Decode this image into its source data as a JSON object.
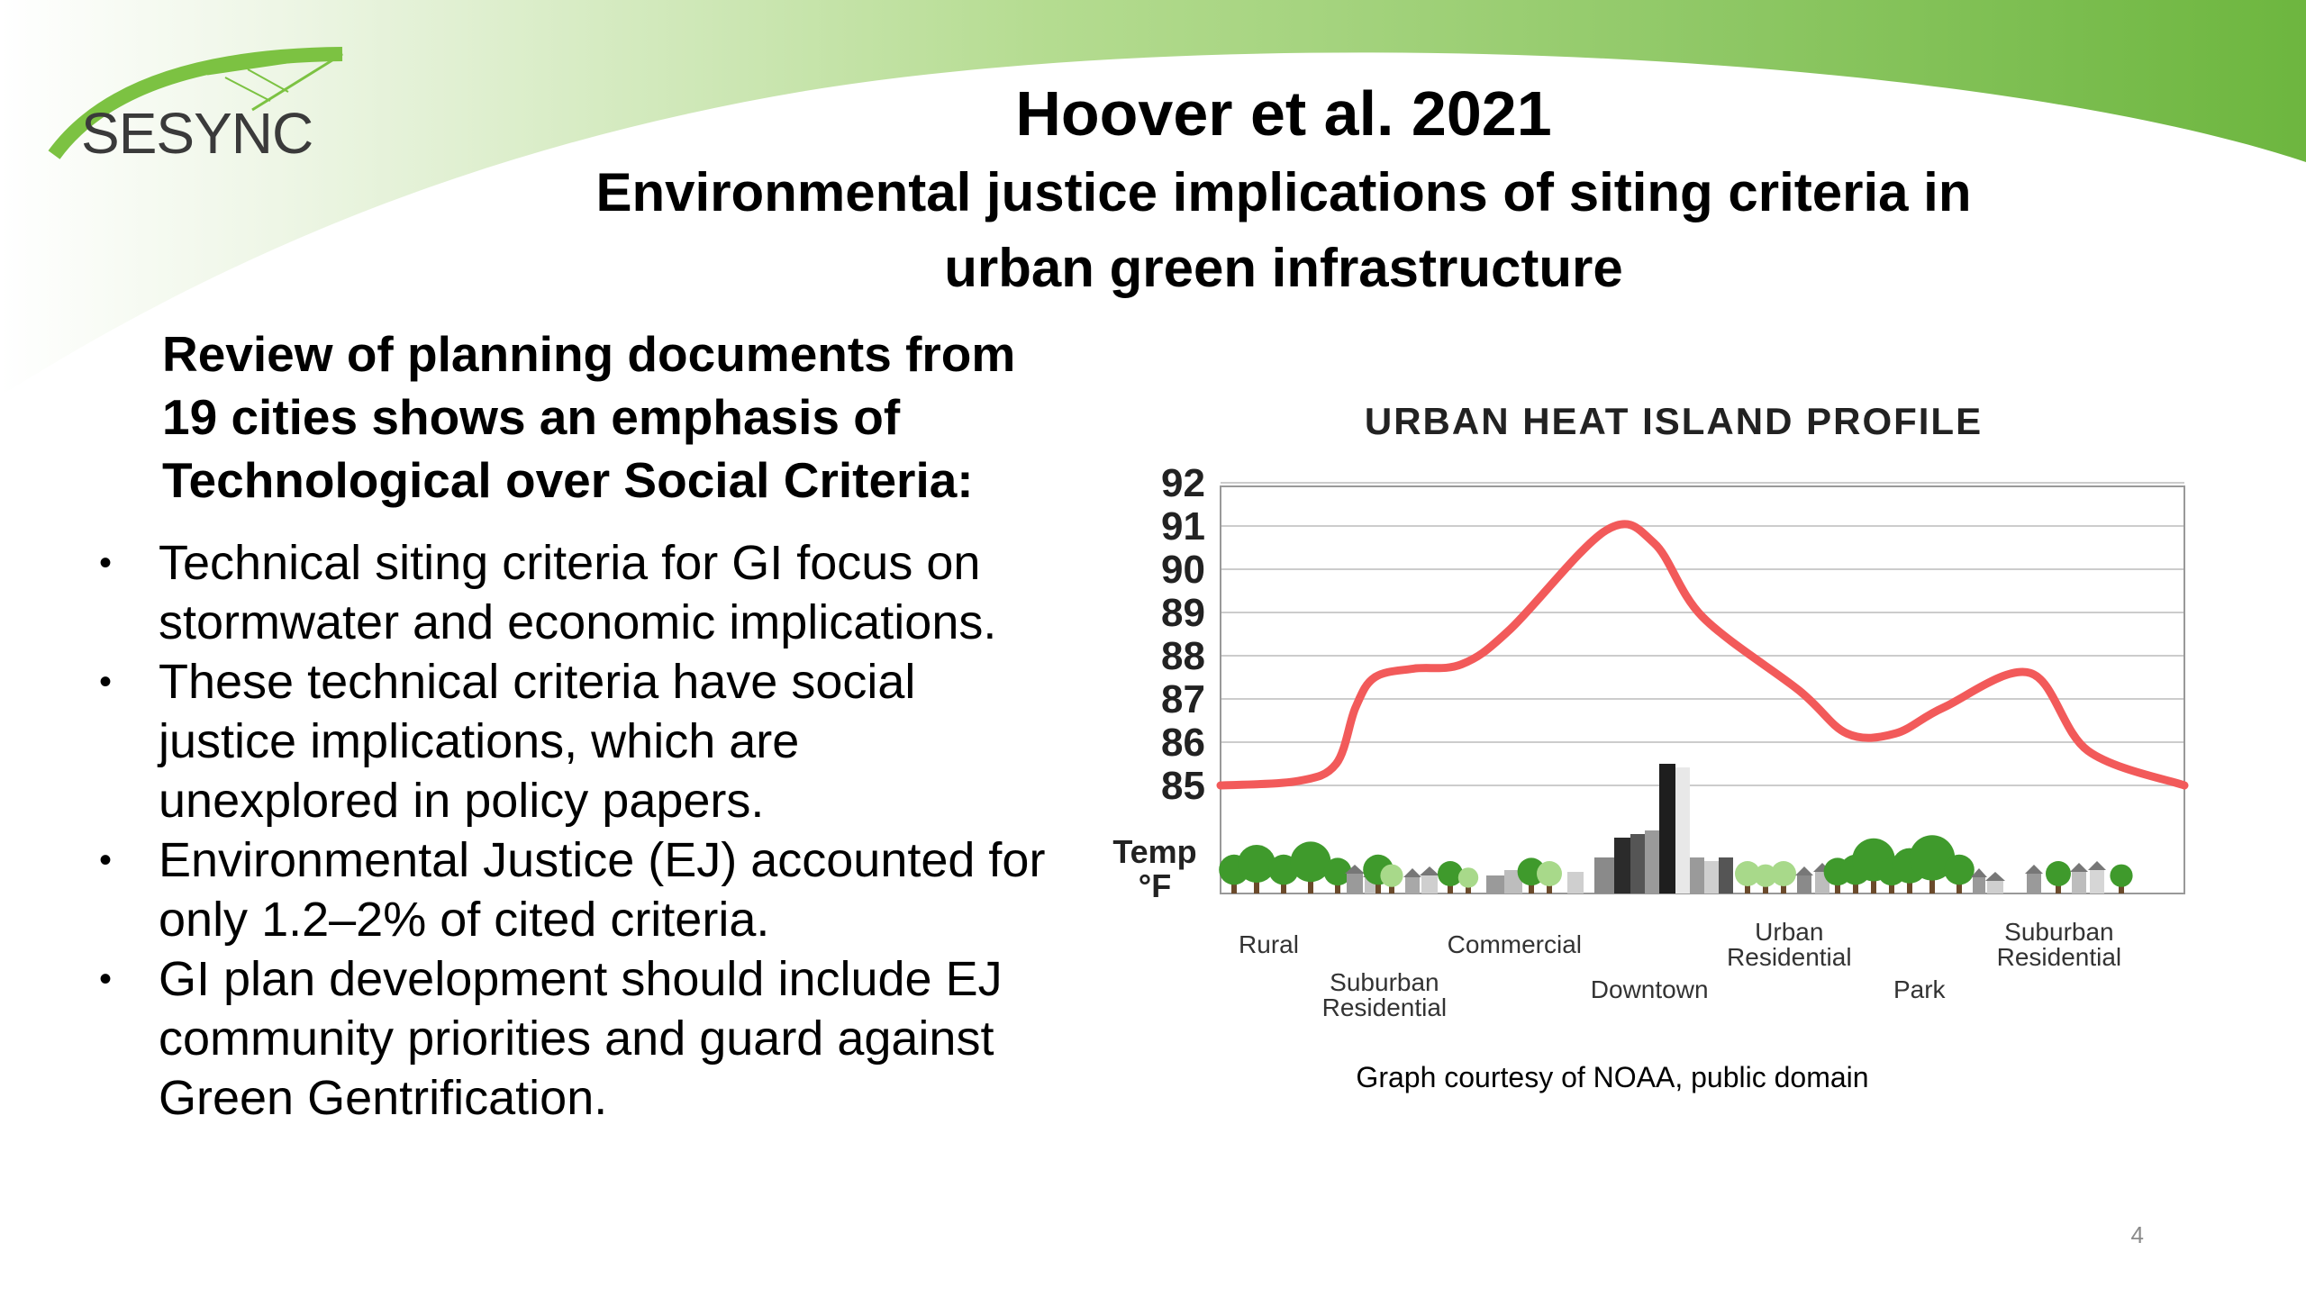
{
  "logo": {
    "text": "SESYNC"
  },
  "title": {
    "main": "Hoover et al. 2021",
    "sub_line1": "Environmental justice implications of siting criteria in",
    "sub_line2": "urban green infrastructure"
  },
  "intro": {
    "line1": "Review of planning documents from",
    "line2": "19 cities shows an emphasis of",
    "line3": "Technological over Social Criteria:"
  },
  "bullets": [
    {
      "line1": "Technical siting criteria for GI focus on",
      "line2": "stormwater and economic implications."
    },
    {
      "line1": "These technical criteria have social",
      "line2": "justice implications, which are",
      "line3": "unexplored in policy papers."
    },
    {
      "line1": "Environmental Justice (EJ) accounted for",
      "line2": "only 1.2–2% of cited criteria."
    },
    {
      "line1": "GI plan development should include EJ",
      "line2": "community priorities and guard against",
      "line3": "Green Gentrification."
    }
  ],
  "bullet_glyph": "•",
  "chart_data": {
    "type": "line",
    "title": "URBAN HEAT ISLAND PROFILE",
    "ylabel_line1": "Temp",
    "ylabel_line2": "°F",
    "ylim": [
      85,
      92
    ],
    "yticks": [
      "92",
      "91",
      "90",
      "89",
      "88",
      "87",
      "86",
      "85"
    ],
    "grid": true,
    "series": [
      {
        "color": "#f25a5a",
        "points": [
          [
            0,
            85.0
          ],
          [
            8,
            85.1
          ],
          [
            12,
            85.5
          ],
          [
            14,
            86.8
          ],
          [
            16,
            87.5
          ],
          [
            20,
            87.7
          ],
          [
            25,
            87.8
          ],
          [
            30,
            88.6
          ],
          [
            40,
            90.9
          ],
          [
            45,
            90.6
          ],
          [
            50,
            88.9
          ],
          [
            60,
            87.2
          ],
          [
            65,
            86.2
          ],
          [
            70,
            86.2
          ],
          [
            75,
            86.8
          ],
          [
            84,
            87.6
          ],
          [
            90,
            85.8
          ],
          [
            100,
            85.0
          ]
        ]
      }
    ],
    "x_regions": [
      {
        "line1": "Rural",
        "line2": "",
        "row": 0,
        "x": 5
      },
      {
        "line1": "Suburban",
        "line2": "Residential",
        "row": 1,
        "x": 17
      },
      {
        "line1": "Commercial",
        "line2": "",
        "row": 0,
        "x": 30.5
      },
      {
        "line1": "Downtown",
        "line2": "",
        "row": 1,
        "x": 44.5
      },
      {
        "line1": "Urban",
        "line2": "Residential",
        "row": 0,
        "x": 59
      },
      {
        "line1": "Park",
        "line2": "",
        "row": 1,
        "x": 72.5
      },
      {
        "line1": "Suburban",
        "line2": "Residential",
        "row": 0,
        "x": 87
      }
    ]
  },
  "caption": "Graph courtesy of NOAA, public domain",
  "page_number": "4",
  "colors": {
    "banner_green": "#6db63f",
    "curve_red": "#f25a5a",
    "tree_green": "#3f9a2c",
    "light_tree_green": "#a8d98a",
    "grid_gray": "#cccccc"
  }
}
